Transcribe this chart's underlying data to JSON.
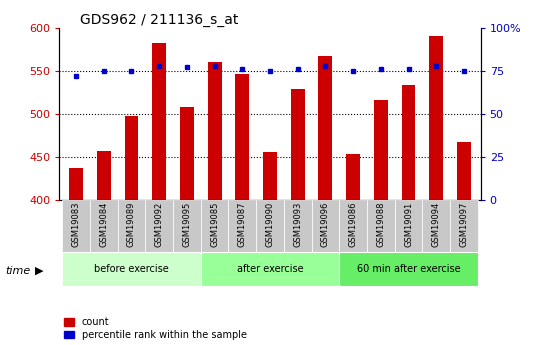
{
  "title": "GDS962 / 211136_s_at",
  "categories": [
    "GSM19083",
    "GSM19084",
    "GSM19089",
    "GSM19092",
    "GSM19095",
    "GSM19085",
    "GSM19087",
    "GSM19090",
    "GSM19093",
    "GSM19096",
    "GSM19086",
    "GSM19088",
    "GSM19091",
    "GSM19094",
    "GSM19097"
  ],
  "counts": [
    437,
    457,
    497,
    582,
    508,
    560,
    546,
    456,
    529,
    567,
    453,
    516,
    534,
    590,
    467
  ],
  "percentiles": [
    72,
    75,
    75,
    78,
    77,
    78,
    76,
    75,
    76,
    78,
    75,
    76,
    76,
    78,
    75
  ],
  "group_defs": [
    [
      0,
      4,
      "#ccffcc",
      "before exercise"
    ],
    [
      5,
      9,
      "#99ff99",
      "after exercise"
    ],
    [
      10,
      14,
      "#66ee66",
      "60 min after exercise"
    ]
  ],
  "ylim_left": [
    400,
    600
  ],
  "ylim_right": [
    0,
    100
  ],
  "bar_color": "#cc0000",
  "dot_color": "#0000cc",
  "tick_color_left": "#cc0000",
  "tick_color_right": "#0000cc",
  "bar_width": 0.5,
  "gray_bg": "#c8c8c8",
  "title_fontsize": 10,
  "label_fontsize": 6,
  "axis_fontsize": 8
}
